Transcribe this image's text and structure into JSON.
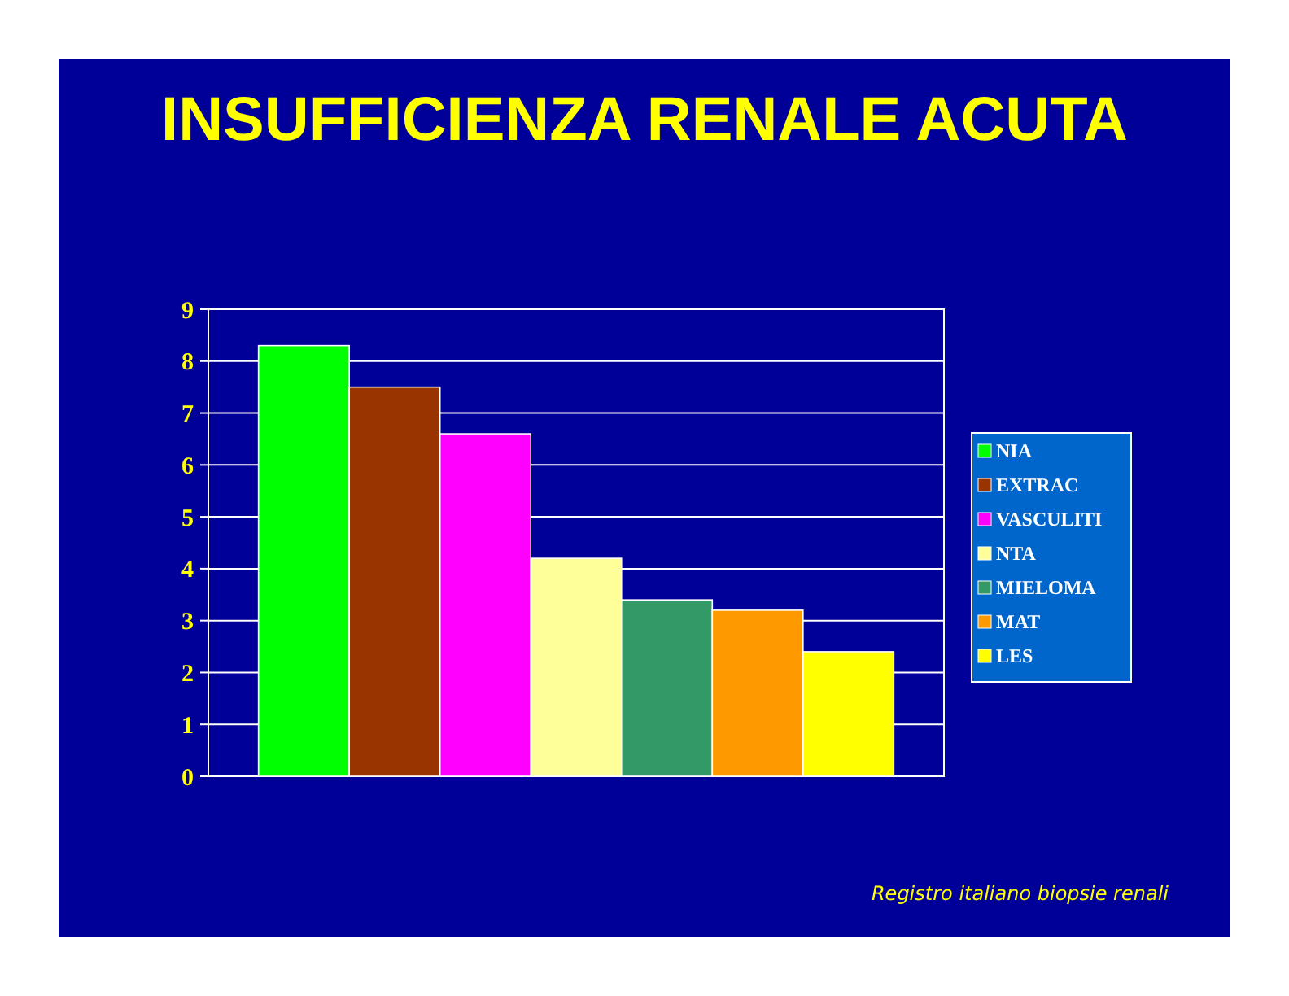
{
  "chart_data": {
    "type": "bar",
    "title": "INSUFFICIENZA RENALE ACUTA",
    "categories": [
      null
    ],
    "series": [
      {
        "name": "NIA",
        "color": "#00ff00",
        "values": [
          8.3
        ]
      },
      {
        "name": "EXTRAC",
        "color": "#993300",
        "values": [
          7.5
        ]
      },
      {
        "name": "VASCULITI",
        "color": "#ff00ff",
        "values": [
          6.6
        ]
      },
      {
        "name": "NTA",
        "color": "#ffff99",
        "values": [
          4.2
        ]
      },
      {
        "name": "MIELOMA",
        "color": "#339966",
        "values": [
          3.4
        ]
      },
      {
        "name": "MAT",
        "color": "#ff9900",
        "values": [
          3.2
        ]
      },
      {
        "name": "LES",
        "color": "#ffff00",
        "values": [
          2.4
        ]
      }
    ],
    "ylim": [
      0,
      9
    ],
    "yticks": [
      0,
      1,
      2,
      3,
      4,
      5,
      6,
      7,
      8,
      9
    ],
    "grid": "y",
    "legend": "right",
    "annotations": [
      "Registro italiano biopsie renali"
    ]
  }
}
